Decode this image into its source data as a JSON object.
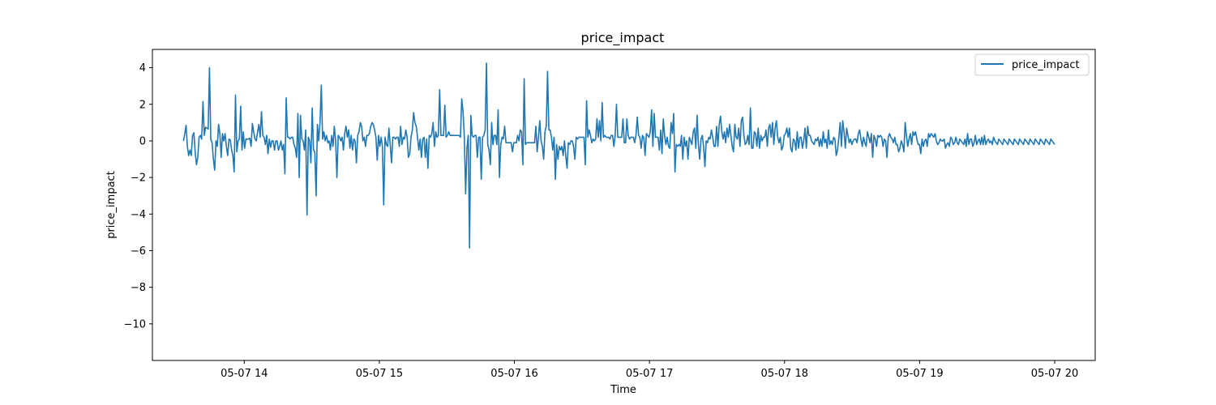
{
  "chart_data": {
    "type": "line",
    "title": "price_impact",
    "xlabel": "Time",
    "ylabel": "price_impact",
    "x_tick_labels": [
      "05-07 14",
      "05-07 15",
      "05-07 16",
      "05-07 17",
      "05-07 18",
      "05-07 19",
      "05-07 20"
    ],
    "x_tick_hours": [
      14,
      15,
      16,
      17,
      18,
      19,
      20
    ],
    "y_ticks": [
      4,
      2,
      0,
      -2,
      -4,
      -6,
      -8,
      -10
    ],
    "y_tick_labels": [
      "4",
      "2",
      "0",
      "−2",
      "−4",
      "−6",
      "−8",
      "−10"
    ],
    "xlim_hours": [
      13.32,
      20.3
    ],
    "ylim": [
      -12.0,
      5.0
    ],
    "grid": false,
    "legend_position": "upper right",
    "line_color": "#1f77b4",
    "series": [
      {
        "name": "price_impact",
        "x_start_hour": 13.55,
        "x_end_hour": 20.0,
        "values": [
          0.0,
          0.4,
          0.85,
          -0.3,
          -0.8,
          -0.5,
          -0.8,
          0.3,
          0.45,
          -0.6,
          -1.3,
          -0.9,
          0.2,
          0.3,
          0.1,
          2.15,
          0.3,
          0.75,
          0.7,
          0.65,
          4.0,
          0.1,
          -0.1,
          -1.0,
          -1.6,
          0.0,
          -0.3,
          0.9,
          0.4,
          -0.9,
          0.4,
          0.0,
          0.4,
          -0.3,
          -0.8,
          0.1,
          0.05,
          -0.5,
          -0.8,
          -1.7,
          2.5,
          -0.6,
          0.0,
          0.1,
          1.9,
          -0.5,
          0.5,
          -0.4,
          0.1,
          0.1,
          0.1,
          0.15,
          -0.3,
          0.95,
          0.5,
          0.1,
          0.0,
          0.5,
          0.9,
          0.2,
          1.6,
          0.3,
          0.2,
          -0.2,
          0.3,
          -0.7,
          0.1,
          -0.35,
          0.0,
          0.0,
          -0.5,
          0.0,
          0.0,
          -0.5,
          -0.3,
          0.0,
          -0.5,
          -0.2,
          -1.8,
          2.35,
          0.2,
          0.2,
          0.1,
          0.2,
          0.2,
          -0.2,
          -0.4,
          -0.9,
          1.5,
          -2.0,
          1.4,
          0.1,
          0.0,
          -0.5,
          0.6,
          -4.05,
          0.2,
          0.0,
          -1.2,
          1.8,
          -0.5,
          -0.6,
          -3.0,
          0.9,
          0.0,
          1.0,
          3.05,
          0.1,
          0.5,
          0.0,
          0.3,
          -0.1,
          0.0,
          -0.5,
          0.3,
          -0.3,
          0.8,
          0.0,
          -2.0,
          0.3,
          0.2,
          0.0,
          0.2,
          -0.5,
          0.4,
          0.8,
          0.2,
          0.6,
          -0.4,
          0.3,
          -0.5,
          0.1,
          0.0,
          -1.2,
          0.3,
          0.5,
          1.0,
          0.8,
          0.0,
          0.2,
          -0.3,
          0.3,
          0.3,
          0.4,
          0.8,
          1.0,
          0.9,
          0.6,
          0.2,
          -1.05,
          0.3,
          -0.3,
          0.2,
          -0.3,
          -3.5,
          0.2,
          -0.2,
          -0.3,
          0.7,
          -0.2,
          -1.2,
          0.2,
          0.2,
          0.1,
          0.2,
          0.2,
          -0.3,
          0.8,
          -0.2,
          0.2,
          0.1,
          0.6,
          0.2,
          -0.9,
          -0.7,
          0.2,
          0.6,
          1.55,
          1.0,
          0.8,
          0.2,
          -0.5,
          0.1,
          -0.9,
          0.1,
          0.2,
          -0.9,
          0.1,
          -1.5,
          0.3,
          0.2,
          0.4,
          1.0,
          -0.3,
          0.5,
          0.2,
          0.3,
          2.8,
          0.3,
          0.3,
          0.3,
          1.95,
          0.2,
          0.3,
          0.5,
          0.3,
          0.3,
          0.3,
          0.3,
          0.3,
          0.3,
          0.3,
          0.3,
          0.2,
          2.3,
          1.6,
          0.2,
          -2.9,
          -0.4,
          0.3,
          -5.85,
          1.4,
          0.3,
          0.2,
          0.3,
          0.3,
          -0.9,
          0.2,
          0.2,
          -2.1,
          0.2,
          0.3,
          0.6,
          4.25,
          -0.2,
          -0.5,
          -1.3,
          1.0,
          -0.2,
          0.3,
          0.3,
          -0.2,
          1.7,
          -2.0,
          -0.2,
          0.2,
          0.1,
          0.8,
          -0.1,
          -0.1,
          -0.1,
          -0.1,
          -0.1,
          -0.6,
          -0.1,
          -0.1,
          -0.1,
          0.3,
          0.0,
          0.6,
          0.5,
          -1.3,
          3.4,
          -0.2,
          -0.1,
          -0.1,
          -0.1,
          -0.1,
          -0.1,
          -0.1,
          -0.1,
          0.8,
          -0.6,
          0.2,
          1.1,
          0.0,
          -0.3,
          -1.0,
          0.5,
          0.8,
          3.8,
          0.6,
          0.6,
          0.2,
          -0.5,
          0.2,
          -2.1,
          -0.2,
          -1.0,
          -0.3,
          -0.5,
          -0.3,
          -0.8,
          0.0,
          -0.8,
          -1.5,
          -0.1,
          -0.2,
          0.0,
          0.0,
          -0.3,
          -1.0,
          0.2,
          0.1,
          0.2,
          0.2,
          0.2,
          0.2,
          0.2,
          -1.3,
          2.2,
          0.2,
          0.6,
          0.3,
          -0.1,
          0.1,
          0.0,
          0.1,
          1.2,
          0.2,
          1.1,
          0.0,
          2.1,
          0.2,
          0.3,
          0.2,
          0.2,
          0.2,
          0.1,
          0.3,
          0.3,
          -0.3,
          0.3,
          2.0,
          0.2,
          0.2,
          0.2,
          0.2,
          1.2,
          -0.1,
          -0.1,
          1.2,
          0.3,
          0.1,
          0.2,
          0.2,
          0.2,
          -0.1,
          0.3,
          1.3,
          0.3,
          0.2,
          -0.4,
          0.3,
          0.2,
          -0.8,
          0.4,
          0.3,
          0.2,
          0.5,
          1.7,
          -0.3,
          1.5,
          0.2,
          0.2,
          0.2,
          -0.5,
          0.6,
          -0.7,
          1.2,
          0.3,
          -0.2,
          0.2,
          -0.3,
          -0.4,
          1.0,
          0.4,
          1.5,
          -1.7,
          -0.2,
          -0.3,
          -0.2,
          -0.3,
          0.3,
          -1.0,
          0.2,
          -0.3,
          0.0,
          -1.0,
          0.2,
          0.0,
          -0.2,
          0.5,
          0.7,
          -0.4,
          1.4,
          -0.2,
          -1.0,
          0.1,
          0.3,
          -0.3,
          -1.4,
          0.0,
          -0.1,
          0.2,
          0.1,
          0.6,
          0.2,
          -0.3,
          -0.3,
          0.8,
          -0.3,
          0.9,
          1.35,
          0.5,
          0.1,
          0.5,
          -0.1,
          0.7,
          0.2,
          0.9,
          0.3,
          -0.3,
          -0.6,
          0.9,
          0.2,
          0.1,
          0.7,
          -0.3,
          1.1,
          1.3,
          0.3,
          -0.2,
          -0.1,
          0.3,
          -0.2,
          1.8,
          -0.4,
          -0.4,
          0.5,
          0.4,
          -0.3,
          0.7,
          -0.4,
          0.3,
          0.0,
          0.2,
          0.2,
          0.6,
          -0.3,
          0.7,
          0.9,
          0.2,
          1.0,
          -0.2,
          0.7,
          1.1,
          0.2,
          -0.1,
          0.2,
          -0.5,
          -0.3,
          0.3,
          0.4,
          0.7,
          0.2,
          0.7,
          -0.4,
          -0.6,
          0.1,
          0.0,
          -0.5,
          0.5,
          -0.4,
          0.2,
          0.2,
          -0.4,
          0.0,
          0.7,
          -0.4,
          0.8,
          0.3,
          0.3,
          0.0,
          -0.1,
          -0.2,
          0.1,
          0.0,
          0.2,
          -0.3,
          0.1,
          -0.3,
          0.5,
          -0.1,
          0.1,
          -0.4,
          0.6,
          -0.2,
          0.0,
          -0.2,
          0.2,
          0.1,
          -0.8,
          -0.5,
          0.2,
          1.0,
          -0.3,
          1.1,
          0.5,
          -0.4,
          0.7,
          0.3,
          -0.1,
          0.1,
          -0.2,
          0.0,
          0.1,
          0.1,
          -0.1,
          0.4,
          0.6,
          0.1,
          -0.3,
          0.2,
          -0.1,
          -0.3,
          0.5,
          0.2,
          -0.1,
          0.4,
          -0.9,
          0.3,
          0.1,
          -0.3,
          0.3,
          0.2,
          0.3,
          0.2,
          -0.3,
          0.1,
          0.0,
          -0.9,
          0.2,
          0.4,
          0.2,
          0.1,
          -0.1,
          0.2,
          -0.2,
          -0.2,
          -0.6,
          -0.4,
          0.0,
          -0.2,
          -0.6,
          1.0,
          0.3,
          -0.3,
          0.1,
          0.4,
          -0.2,
          0.5,
          0.3,
          0.5,
          0.1,
          -0.2,
          -0.2,
          -0.7,
          0.1,
          -0.3,
          0.0,
          0.1,
          -0.3,
          0.4,
          0.2,
          0.4,
          0.3,
          0.2,
          0.4,
          0.0,
          -0.2,
          -0.1,
          0.1,
          0.0,
          0.0,
          0.1,
          -0.4,
          -0.2,
          -0.1,
          -0.3,
          0.2,
          0.1,
          -0.2,
          -0.1,
          0.2,
          -0.1,
          -0.2,
          0.1,
          0.0,
          -0.1,
          -0.2,
          0.1,
          -0.3,
          0.4,
          -0.2,
          0.1,
          0.1,
          -0.3,
          -0.1,
          0.3,
          -0.2,
          0.0,
          0.1,
          -0.2,
          0.2,
          -0.2,
          0.3,
          -0.2,
          0.0,
          0.1,
          -0.1,
          0.0,
          -0.2,
          0.2,
          0.0,
          -0.1,
          -0.2,
          0.1,
          0.0,
          -0.1,
          -0.2,
          0.1,
          0.0,
          -0.1,
          -0.2,
          0.1,
          0.0,
          -0.1,
          -0.2,
          0.1,
          0.0,
          -0.1,
          -0.2,
          0.1,
          0.0,
          -0.1,
          -0.2,
          0.1,
          0.0,
          -0.1,
          -0.2,
          0.1,
          0.0,
          -0.1,
          -0.2,
          0.1,
          0.0,
          -0.1,
          -0.2,
          0.1,
          0.0,
          -0.1,
          -0.2,
          0.1,
          0.0,
          -0.1,
          -0.2,
          0.1,
          0.0,
          -0.1,
          -0.2
        ]
      }
    ]
  }
}
